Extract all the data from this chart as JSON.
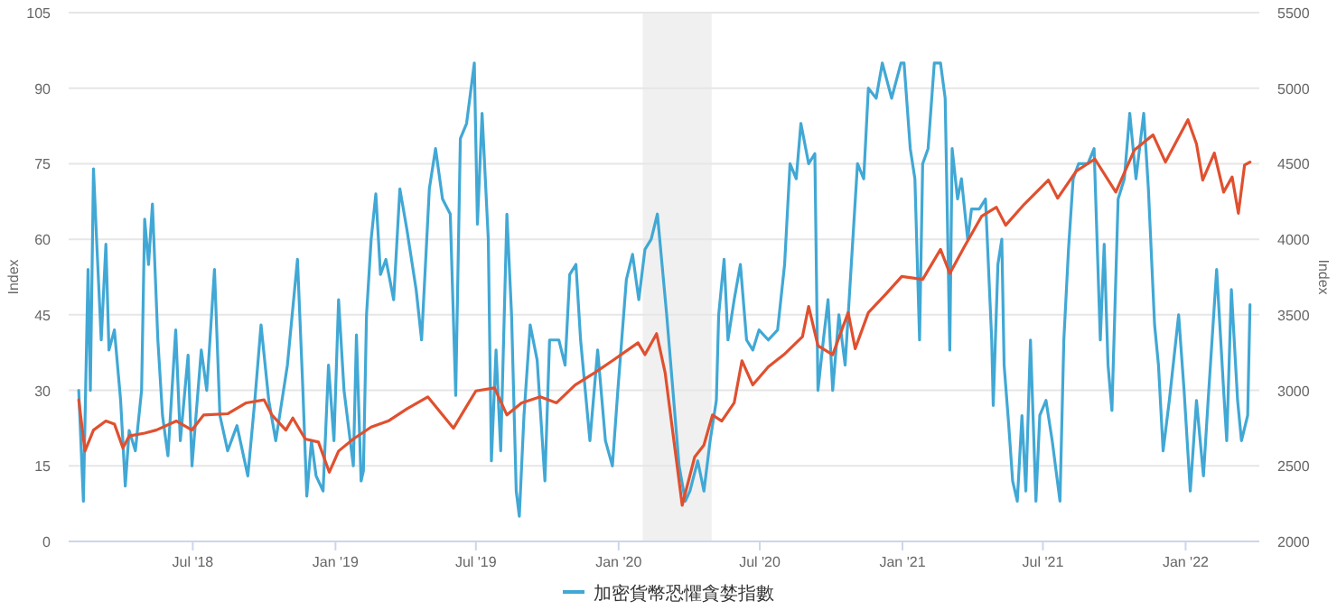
{
  "chart_data": {
    "type": "line",
    "ylabel": "Index",
    "y2label": "Index",
    "grid": "y",
    "legend": "bottom",
    "marker": "none",
    "line_style": "solid",
    "xlim": [
      "2018-01-22",
      "2022-04-06"
    ],
    "xticks": [
      {
        "value": "2018-07-01",
        "label": "Jul '18"
      },
      {
        "value": "2019-01-01",
        "label": "Jan '19"
      },
      {
        "value": "2019-07-01",
        "label": "Jul '19"
      },
      {
        "value": "2020-01-01",
        "label": "Jan '20"
      },
      {
        "value": "2020-07-01",
        "label": "Jul '20"
      },
      {
        "value": "2021-01-01",
        "label": "Jan '21"
      },
      {
        "value": "2021-07-01",
        "label": "Jul '21"
      },
      {
        "value": "2022-01-01",
        "label": "Jan '22"
      }
    ],
    "ylim": [
      0,
      105
    ],
    "yticks": [
      0,
      15,
      30,
      45,
      60,
      75,
      90,
      105
    ],
    "y2lim": [
      2000,
      5500
    ],
    "y2ticks": [
      2000,
      2500,
      3000,
      3500,
      4000,
      4500,
      5000,
      5500
    ],
    "bands": [
      {
        "axis": "x",
        "from": "2020-02-01",
        "to": "2020-04-30",
        "color": "#f0f0f0"
      }
    ],
    "series": [
      {
        "name": "加密貨幣恐懼貪婪指數",
        "color": "#41a8d5",
        "x": [
          "2018-02-04",
          "2018-02-10",
          "2018-02-16",
          "2018-02-19",
          "2018-02-23",
          "2018-02-27",
          "2018-03-05",
          "2018-03-11",
          "2018-03-15",
          "2018-03-22",
          "2018-03-30",
          "2018-04-05",
          "2018-04-10",
          "2018-04-18",
          "2018-04-26",
          "2018-04-30",
          "2018-05-05",
          "2018-05-10",
          "2018-05-17",
          "2018-05-23",
          "2018-05-30",
          "2018-06-09",
          "2018-06-15",
          "2018-06-25",
          "2018-06-30",
          "2018-07-12",
          "2018-07-19",
          "2018-07-29",
          "2018-08-05",
          "2018-08-15",
          "2018-08-27",
          "2018-09-10",
          "2018-09-19",
          "2018-09-27",
          "2018-10-07",
          "2018-10-16",
          "2018-10-31",
          "2018-11-13",
          "2018-11-20",
          "2018-11-25",
          "2018-12-01",
          "2018-12-07",
          "2018-12-16",
          "2018-12-23",
          "2018-12-30",
          "2019-01-05",
          "2019-01-12",
          "2019-01-24",
          "2019-01-28",
          "2019-02-03",
          "2019-02-06",
          "2019-02-10",
          "2019-02-16",
          "2019-02-22",
          "2019-02-28",
          "2019-03-07",
          "2019-03-17",
          "2019-03-25",
          "2019-04-03",
          "2019-04-15",
          "2019-04-22",
          "2019-05-02",
          "2019-05-10",
          "2019-05-19",
          "2019-05-29",
          "2019-06-05",
          "2019-06-11",
          "2019-06-19",
          "2019-06-29",
          "2019-07-03",
          "2019-07-09",
          "2019-07-17",
          "2019-07-21",
          "2019-07-27",
          "2019-08-02",
          "2019-08-10",
          "2019-08-16",
          "2019-08-22",
          "2019-08-26",
          "2019-09-01",
          "2019-09-09",
          "2019-09-18",
          "2019-09-28",
          "2019-10-04",
          "2019-10-16",
          "2019-10-24",
          "2019-10-30",
          "2019-11-07",
          "2019-11-13",
          "2019-11-25",
          "2019-12-05",
          "2019-12-15",
          "2019-12-24",
          "2019-12-31",
          "2020-01-11",
          "2020-01-19",
          "2020-01-27",
          "2020-02-04",
          "2020-02-12",
          "2020-02-20",
          "2020-02-26",
          "2020-03-03",
          "2020-03-11",
          "2020-03-19",
          "2020-03-27",
          "2020-04-02",
          "2020-04-12",
          "2020-04-20",
          "2020-04-28",
          "2020-05-06",
          "2020-05-09",
          "2020-05-16",
          "2020-05-21",
          "2020-05-29",
          "2020-06-06",
          "2020-06-14",
          "2020-06-22",
          "2020-06-30",
          "2020-07-12",
          "2020-07-24",
          "2020-08-02",
          "2020-08-09",
          "2020-08-17",
          "2020-08-23",
          "2020-09-02",
          "2020-09-10",
          "2020-09-14",
          "2020-09-21",
          "2020-09-27",
          "2020-10-03",
          "2020-10-11",
          "2020-10-19",
          "2020-10-27",
          "2020-11-04",
          "2020-11-12",
          "2020-11-18",
          "2020-11-28",
          "2020-12-06",
          "2020-12-18",
          "2020-12-30",
          "2021-01-03",
          "2021-01-11",
          "2021-01-17",
          "2021-01-23",
          "2021-01-27",
          "2021-02-03",
          "2021-02-11",
          "2021-02-19",
          "2021-02-25",
          "2021-03-03",
          "2021-03-06",
          "2021-03-13",
          "2021-03-18",
          "2021-03-26",
          "2021-03-31",
          "2021-04-10",
          "2021-04-18",
          "2021-04-26",
          "2021-04-28",
          "2021-05-04",
          "2021-05-09",
          "2021-05-12",
          "2021-05-18",
          "2021-05-23",
          "2021-05-29",
          "2021-06-04",
          "2021-06-09",
          "2021-06-15",
          "2021-06-22",
          "2021-06-27",
          "2021-07-05",
          "2021-07-13",
          "2021-07-23",
          "2021-07-28",
          "2021-08-03",
          "2021-08-09",
          "2021-08-16",
          "2021-08-28",
          "2021-09-05",
          "2021-09-13",
          "2021-09-18",
          "2021-09-23",
          "2021-09-28",
          "2021-10-06",
          "2021-10-14",
          "2021-10-21",
          "2021-10-29",
          "2021-11-08",
          "2021-11-14",
          "2021-11-22",
          "2021-11-27",
          "2021-12-03",
          "2021-12-11",
          "2021-12-23",
          "2021-12-30",
          "2022-01-07",
          "2022-01-15",
          "2022-01-24",
          "2022-01-30",
          "2022-02-10",
          "2022-02-19",
          "2022-02-23",
          "2022-03-01",
          "2022-03-09",
          "2022-03-14",
          "2022-03-22",
          "2022-03-25"
        ],
        "values": [
          30,
          8,
          54,
          30,
          74,
          60,
          40,
          59,
          38,
          42,
          28,
          11,
          22,
          18,
          30,
          64,
          55,
          67,
          40,
          25,
          17,
          42,
          20,
          37,
          15,
          38,
          30,
          54,
          25,
          18,
          23,
          13,
          28,
          43,
          28,
          20,
          35,
          56,
          30,
          9,
          20,
          13,
          10,
          35,
          20,
          48,
          30,
          15,
          41,
          12,
          14,
          45,
          60,
          69,
          53,
          56,
          48,
          70,
          62,
          50,
          40,
          70,
          78,
          68,
          65,
          29,
          80,
          83,
          95,
          63,
          85,
          60,
          16,
          38,
          18,
          65,
          45,
          10,
          5,
          25,
          43,
          36,
          12,
          40,
          40,
          35,
          53,
          55,
          40,
          20,
          38,
          20,
          15,
          30,
          52,
          57,
          48,
          58,
          60,
          65,
          55,
          45,
          30,
          15,
          8,
          10,
          16,
          10,
          20,
          28,
          45,
          56,
          40,
          48,
          55,
          40,
          38,
          42,
          40,
          42,
          55,
          75,
          72,
          83,
          75,
          77,
          30,
          40,
          48,
          30,
          45,
          35,
          55,
          75,
          72,
          90,
          88,
          95,
          88,
          95,
          95,
          78,
          72,
          40,
          75,
          78,
          95,
          95,
          88,
          38,
          78,
          68,
          72,
          60,
          66,
          66,
          68,
          40,
          27,
          55,
          60,
          35,
          23,
          12,
          8,
          25,
          10,
          40,
          8,
          25,
          28,
          20,
          8,
          40,
          58,
          72,
          75,
          75,
          78,
          40,
          59,
          35,
          26,
          68,
          72,
          85,
          72,
          85,
          70,
          43,
          35,
          18,
          28,
          45,
          30,
          10,
          28,
          13,
          28,
          54,
          30,
          20,
          50,
          28,
          20,
          25,
          47
        ]
      },
      {
        "color": "#e0502f",
        "axis": "y2",
        "x": [
          "2018-02-04",
          "2018-02-12",
          "2018-02-23",
          "2018-03-11",
          "2018-03-22",
          "2018-04-02",
          "2018-04-10",
          "2018-04-30",
          "2018-05-15",
          "2018-06-10",
          "2018-06-30",
          "2018-07-15",
          "2018-08-15",
          "2018-09-08",
          "2018-10-01",
          "2018-10-11",
          "2018-10-29",
          "2018-11-07",
          "2018-11-23",
          "2018-12-10",
          "2018-12-24",
          "2019-01-05",
          "2019-01-24",
          "2019-02-16",
          "2019-03-10",
          "2019-04-03",
          "2019-04-30",
          "2019-05-19",
          "2019-06-02",
          "2019-06-17",
          "2019-07-01",
          "2019-07-25",
          "2019-08-10",
          "2019-08-29",
          "2019-09-22",
          "2019-10-13",
          "2019-11-06",
          "2019-12-01",
          "2019-12-24",
          "2020-01-26",
          "2020-02-04",
          "2020-02-19",
          "2020-03-01",
          "2020-03-13",
          "2020-03-23",
          "2020-04-08",
          "2020-04-20",
          "2020-05-01",
          "2020-05-13",
          "2020-05-29",
          "2020-06-08",
          "2020-06-22",
          "2020-07-12",
          "2020-08-01",
          "2020-08-25",
          "2020-09-02",
          "2020-09-14",
          "2020-10-03",
          "2020-10-23",
          "2020-11-01",
          "2020-11-18",
          "2020-12-10",
          "2020-12-31",
          "2021-01-27",
          "2021-02-19",
          "2021-03-03",
          "2021-03-22",
          "2021-04-13",
          "2021-05-02",
          "2021-05-14",
          "2021-06-07",
          "2021-07-08",
          "2021-07-20",
          "2021-08-13",
          "2021-09-06",
          "2021-10-03",
          "2021-10-27",
          "2021-11-20",
          "2021-12-06",
          "2022-01-04",
          "2022-01-15",
          "2022-01-23",
          "2022-02-07",
          "2022-02-19",
          "2022-03-02",
          "2022-03-10",
          "2022-03-18",
          "2022-03-25"
        ],
        "values": [
          2937,
          2598,
          2737,
          2797,
          2777,
          2618,
          2698,
          2717,
          2737,
          2797,
          2737,
          2837,
          2845,
          2917,
          2937,
          2837,
          2737,
          2817,
          2678,
          2658,
          2458,
          2598,
          2678,
          2757,
          2797,
          2877,
          2957,
          2837,
          2749,
          2877,
          2996,
          3016,
          2837,
          2917,
          2957,
          2917,
          3036,
          3116,
          3196,
          3315,
          3236,
          3375,
          3116,
          2638,
          2239,
          2558,
          2638,
          2837,
          2797,
          2917,
          3196,
          3036,
          3156,
          3236,
          3355,
          3555,
          3295,
          3236,
          3515,
          3276,
          3515,
          3634,
          3754,
          3734,
          3933,
          3774,
          3953,
          4152,
          4212,
          4093,
          4232,
          4392,
          4272,
          4451,
          4531,
          4312,
          4591,
          4691,
          4511,
          4791,
          4631,
          4392,
          4571,
          4312,
          4412,
          4172,
          4491,
          4511
        ]
      }
    ]
  }
}
